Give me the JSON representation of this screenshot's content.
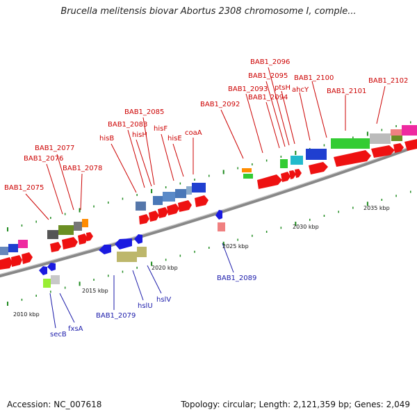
{
  "title": "Brucella melitensis biovar Abortus 2308 chromosome I, comple...",
  "footer": {
    "accession": "Accession: NC_007618",
    "topology": "Topology: circular; Length: 2,121,359 bp; Genes: 2,049"
  },
  "colors": {
    "forward_label": "#cc0000",
    "reverse_label": "#1a1aaa",
    "backbone": "#8a8a8a",
    "tick": "#1e8a1e"
  },
  "kbp_labels": [
    {
      "text": "2010 kbp"
    },
    {
      "text": "2015 kbp"
    },
    {
      "text": "2020 kbp"
    },
    {
      "text": "2025 kbp"
    },
    {
      "text": "2030 kbp"
    },
    {
      "text": "2035 kbp"
    }
  ],
  "top_labels": [
    {
      "text": "BAB1_2075"
    },
    {
      "text": "BAB1_2076"
    },
    {
      "text": "BAB1_2077"
    },
    {
      "text": "BAB1_2078"
    },
    {
      "text": "hisB"
    },
    {
      "text": "BAB1_2083"
    },
    {
      "text": "BAB1_2085"
    },
    {
      "text": "hisH"
    },
    {
      "text": "hisF"
    },
    {
      "text": "hisE"
    },
    {
      "text": "coaA"
    },
    {
      "text": "BAB1_2092"
    },
    {
      "text": "BAB1_2093"
    },
    {
      "text": "BAB1_2094"
    },
    {
      "text": "BAB1_2095"
    },
    {
      "text": "BAB1_2096"
    },
    {
      "text": "ptsH"
    },
    {
      "text": "ahcY"
    },
    {
      "text": "BAB1_2100"
    },
    {
      "text": "BAB1_2101"
    },
    {
      "text": "BAB1_2102"
    }
  ],
  "bottom_labels": [
    {
      "text": "secB"
    },
    {
      "text": "fxsA"
    },
    {
      "text": "BAB1_2079"
    },
    {
      "text": "hslU"
    },
    {
      "text": "hslV"
    },
    {
      "text": "BAB1_2089"
    }
  ]
}
